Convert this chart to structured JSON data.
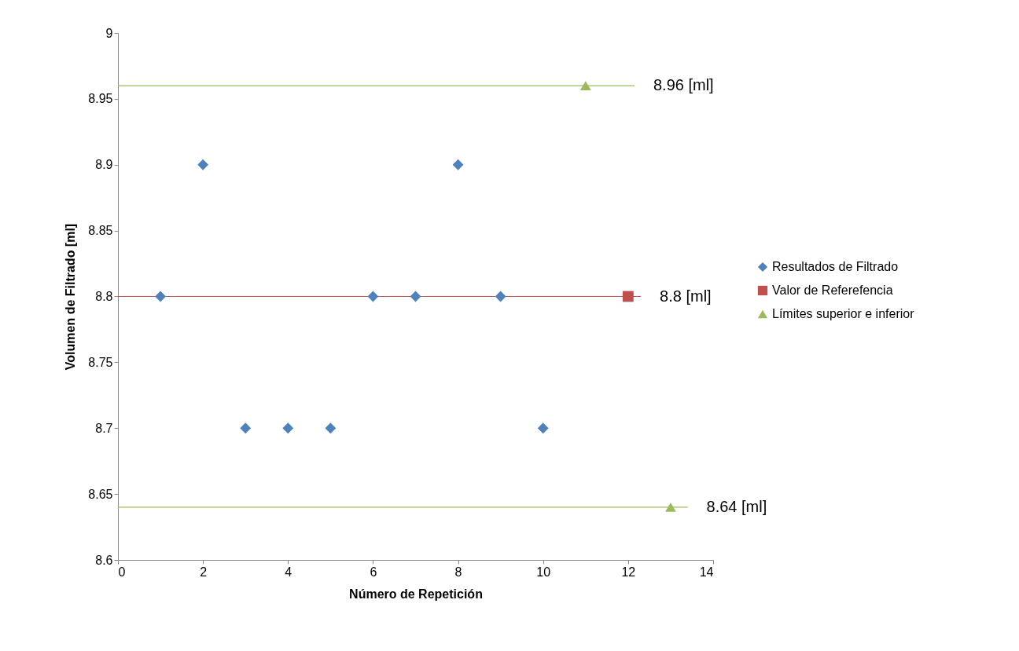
{
  "chart_data": {
    "type": "scatter",
    "xlabel": "Número de Repetición",
    "ylabel": "Volumen de Filtrado [ml]",
    "xlim": [
      0,
      14
    ],
    "xticks": [
      0,
      2,
      4,
      6,
      8,
      10,
      12,
      14
    ],
    "ylim": [
      8.6,
      9
    ],
    "yticks": [
      8.6,
      8.65,
      8.7,
      8.75,
      8.8,
      8.85,
      8.9,
      8.95,
      9
    ],
    "grid": false,
    "legend": "right",
    "series": [
      {
        "type": "line",
        "color": "#c0504d",
        "x": [
          0,
          12.3
        ],
        "values": [
          8.8,
          8.8
        ]
      },
      {
        "type": "line",
        "color": "#9bbb59",
        "x": [
          0,
          12.15
        ],
        "values": [
          8.96,
          8.96
        ]
      },
      {
        "type": "line",
        "color": "#9bbb59",
        "x": [
          0,
          13.4
        ],
        "values": [
          8.64,
          8.64
        ]
      },
      {
        "type": "scatter",
        "name": "Resultados de Filtrado",
        "color": "#4f81bd",
        "marker": "diamond",
        "x": [
          1,
          2,
          3,
          4,
          5,
          6,
          7,
          8,
          9,
          10
        ],
        "values": [
          8.8,
          8.9,
          8.7,
          8.7,
          8.7,
          8.8,
          8.8,
          8.9,
          8.8,
          8.7
        ]
      },
      {
        "type": "scatter",
        "name": "Valor de Referefencia",
        "color": "#c0504d",
        "marker": "square",
        "x": [
          12
        ],
        "values": [
          8.8
        ]
      },
      {
        "type": "scatter",
        "name": "Límites superior e inferior",
        "color": "#9bbb59",
        "marker": "triangle",
        "x": [
          11,
          13
        ],
        "values": [
          8.96,
          8.64
        ]
      }
    ],
    "annotations": [
      {
        "text": "8.96 [ml]",
        "x": 12.15,
        "y": 8.96
      },
      {
        "text": "8.8 [ml]",
        "x": 12.3,
        "y": 8.8
      },
      {
        "text": "8.64 [ml]",
        "x": 13.4,
        "y": 8.64
      }
    ]
  }
}
